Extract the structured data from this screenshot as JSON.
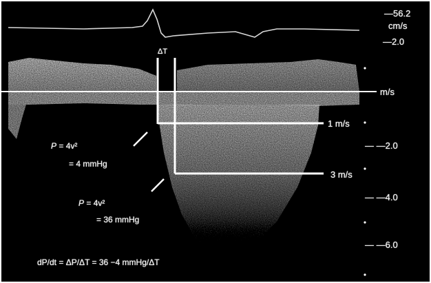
{
  "image": {
    "description_free": true
  },
  "scale": {
    "top_value": "—56.2",
    "top_unit": "cm/s",
    "baseline_top": "—2.0",
    "unit": "m/s",
    "minus_2": "— —2.0",
    "minus_4": "— —4.0",
    "minus_6": "— —6.0"
  },
  "markers": {
    "delta_t": "ΔT",
    "velocity_1": "1 m/s",
    "velocity_3": "3 m/s"
  },
  "equations": {
    "eq1_formula_prefix": "P",
    "eq1_formula_rest": " = 4v²",
    "eq1_result": "= 4 mmHg",
    "eq2_formula_prefix": "P",
    "eq2_formula_rest": " = 4v²",
    "eq2_result": "= 36 mmHg",
    "rate": "dP/dt = ΔP/ΔT = 36 −4 mmHg/ΔT"
  },
  "colors": {
    "background": "#000000",
    "signal": "#ffffff",
    "doppler": "#cfcfcf"
  }
}
